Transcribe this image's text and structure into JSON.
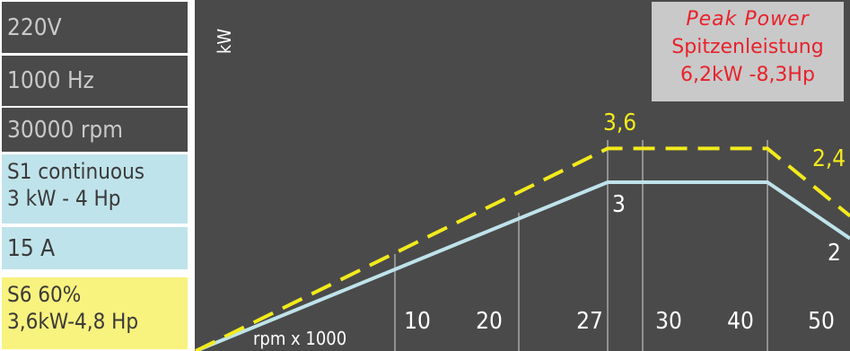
{
  "specs": {
    "voltage": "220V",
    "frequency": "1000 Hz",
    "speed": "30000 rpm",
    "s1_line1": "S1 continuous",
    "s1_line2": "3 kW - 4 Hp",
    "current": "15 A",
    "s6_line1": "S6 60%",
    "s6_line2": "3,6kW-4,8 Hp"
  },
  "peak": {
    "title": "Peak  Power",
    "subtitle": "Spitzenleistung",
    "value": "6,2kW -8,3Hp"
  },
  "colors": {
    "background": "#4a4a4a",
    "s1_line": "#bfe3ea",
    "s6_line": "#f2ea1c",
    "peak_text": "#e8222b"
  },
  "chart_data": {
    "type": "line",
    "xlabel": "rpm x 1000",
    "ylabel": "kW",
    "x_ticks": [
      "10",
      "20",
      "27",
      "30",
      "40",
      "50"
    ],
    "series": [
      {
        "name": "S1 continuous",
        "style": "solid",
        "x": [
          0,
          27,
          40,
          50
        ],
        "y": [
          0,
          3,
          3,
          2
        ],
        "point_labels": [
          {
            "x": 27,
            "text": "3"
          },
          {
            "x": 50,
            "text": "2"
          }
        ]
      },
      {
        "name": "S6 60%",
        "style": "dashed",
        "x": [
          0,
          27,
          40,
          50
        ],
        "y": [
          0,
          3.6,
          3.6,
          2.4
        ],
        "point_labels": [
          {
            "x": 27,
            "text": "3,6"
          },
          {
            "x": 50,
            "text": "2,4"
          }
        ]
      }
    ]
  }
}
